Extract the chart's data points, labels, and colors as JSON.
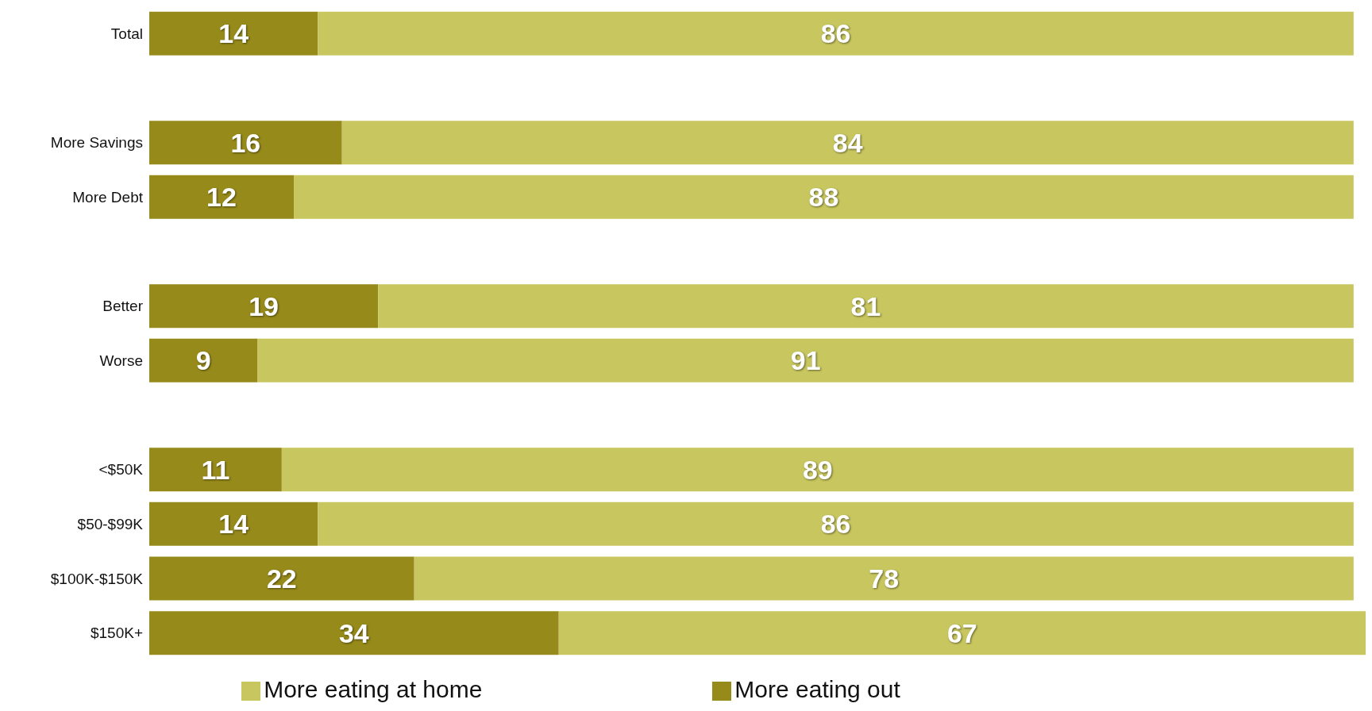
{
  "chart_data": {
    "type": "bar",
    "orientation": "horizontal",
    "stacked": true,
    "data_labels": true,
    "legend": "bottom",
    "grid": false,
    "tick_labels": "y",
    "categories": [
      "Total",
      null,
      "More Savings",
      "More Debt",
      null,
      "Better",
      "Worse",
      null,
      "<$50K",
      "$50-$99K",
      "$100K-$150K",
      "$150K+"
    ],
    "series": [
      {
        "name": "More eating out",
        "color": "#968a1a",
        "values": [
          14,
          null,
          16,
          12,
          null,
          19,
          9,
          null,
          11,
          14,
          22,
          34
        ]
      },
      {
        "name": "More eating at home",
        "color": "#c8c65e",
        "values": [
          86,
          null,
          84,
          88,
          null,
          81,
          91,
          null,
          89,
          86,
          78,
          67
        ]
      }
    ]
  }
}
